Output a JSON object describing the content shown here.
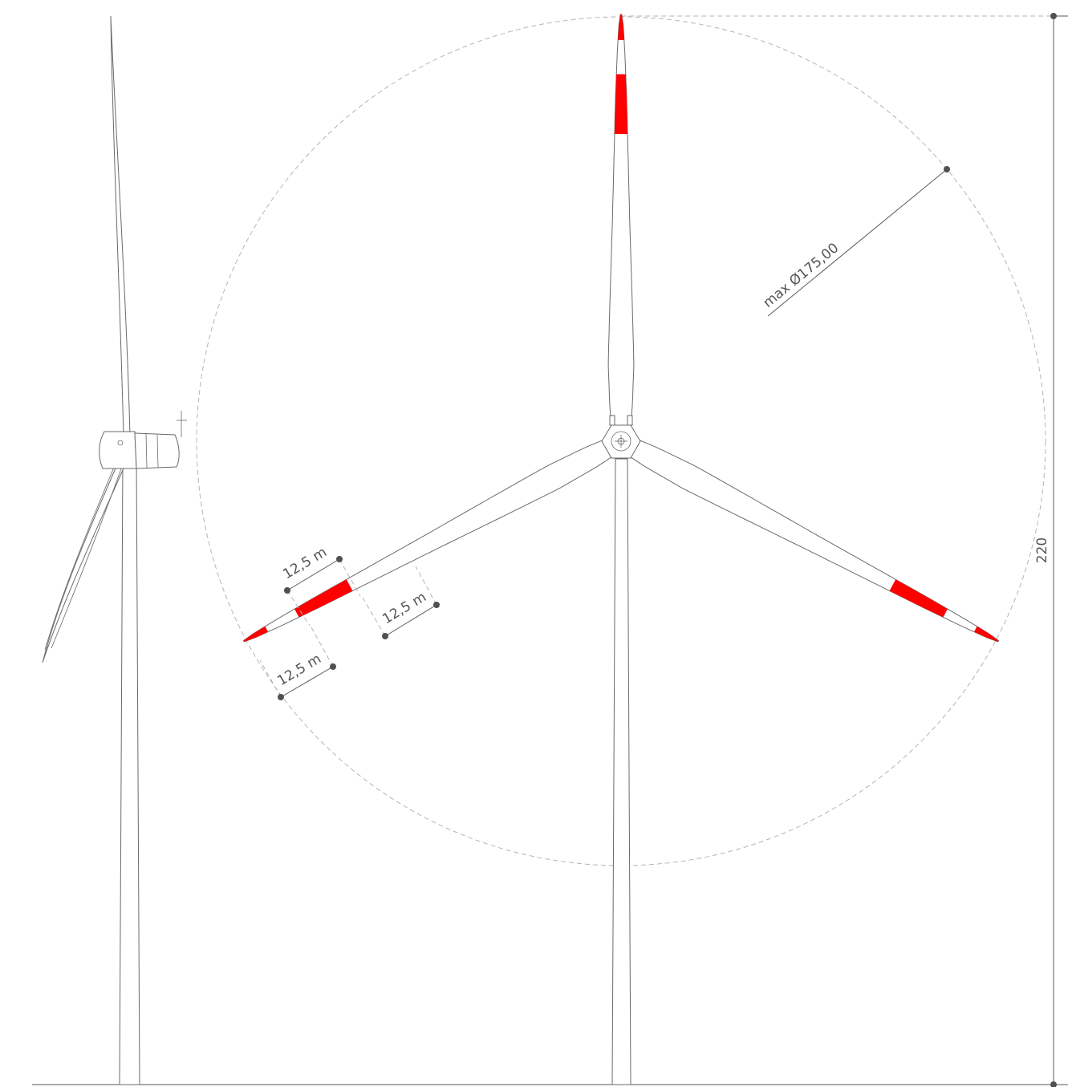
{
  "drawing": {
    "rotor_label": "max Ø175,00",
    "height_label": "220",
    "band_labels": [
      "12,5 m",
      "12,5 m",
      "12,5 m"
    ]
  },
  "colors": {
    "marking": "#ff0000",
    "line": "#5a5a5a",
    "dashed_circle": "#b5b5b5",
    "background": "#ffffff"
  }
}
